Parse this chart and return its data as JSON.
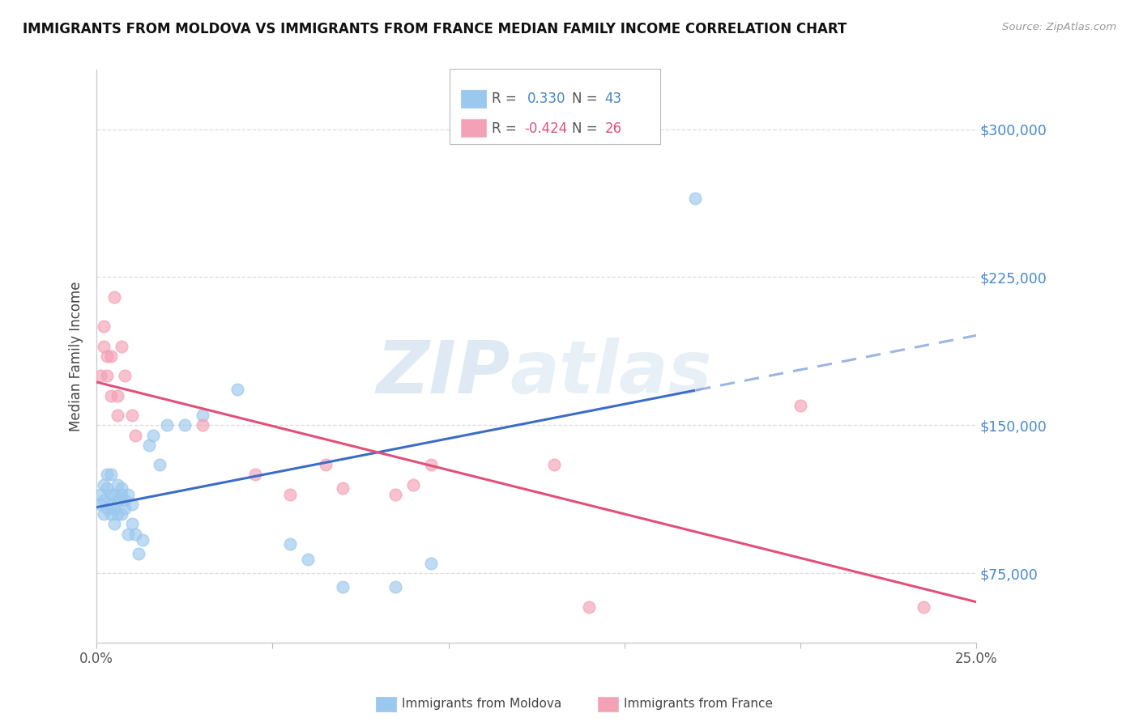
{
  "title": "IMMIGRANTS FROM MOLDOVA VS IMMIGRANTS FROM FRANCE MEDIAN FAMILY INCOME CORRELATION CHART",
  "source": "Source: ZipAtlas.com",
  "ylabel": "Median Family Income",
  "xlim": [
    0.0,
    0.25
  ],
  "ylim": [
    40000,
    330000
  ],
  "yticks": [
    75000,
    150000,
    225000,
    300000
  ],
  "ytick_labels": [
    "$75,000",
    "$150,000",
    "$225,000",
    "$300,000"
  ],
  "moldova": {
    "R": 0.33,
    "N": 43,
    "color": "#9BC8EE",
    "line_color": "#3B6CC7",
    "x": [
      0.001,
      0.001,
      0.002,
      0.002,
      0.002,
      0.003,
      0.003,
      0.003,
      0.004,
      0.004,
      0.004,
      0.004,
      0.005,
      0.005,
      0.005,
      0.006,
      0.006,
      0.006,
      0.007,
      0.007,
      0.007,
      0.008,
      0.008,
      0.009,
      0.009,
      0.01,
      0.01,
      0.011,
      0.012,
      0.013,
      0.015,
      0.016,
      0.018,
      0.02,
      0.025,
      0.03,
      0.04,
      0.055,
      0.06,
      0.07,
      0.085,
      0.095,
      0.17
    ],
    "y": [
      115000,
      110000,
      105000,
      112000,
      120000,
      118000,
      108000,
      125000,
      105000,
      115000,
      125000,
      110000,
      100000,
      115000,
      108000,
      120000,
      112000,
      105000,
      115000,
      105000,
      118000,
      108000,
      112000,
      115000,
      95000,
      110000,
      100000,
      95000,
      85000,
      92000,
      140000,
      145000,
      130000,
      150000,
      150000,
      155000,
      168000,
      90000,
      82000,
      68000,
      68000,
      80000,
      265000
    ]
  },
  "france": {
    "R": -0.424,
    "N": 26,
    "color": "#F4A0B5",
    "line_color": "#E0507A",
    "x": [
      0.001,
      0.002,
      0.002,
      0.003,
      0.003,
      0.004,
      0.004,
      0.005,
      0.006,
      0.006,
      0.007,
      0.008,
      0.01,
      0.011,
      0.03,
      0.045,
      0.055,
      0.065,
      0.07,
      0.085,
      0.09,
      0.095,
      0.13,
      0.14,
      0.2,
      0.235
    ],
    "y": [
      175000,
      200000,
      190000,
      185000,
      175000,
      185000,
      165000,
      215000,
      165000,
      155000,
      190000,
      175000,
      155000,
      145000,
      150000,
      125000,
      115000,
      130000,
      118000,
      115000,
      120000,
      130000,
      130000,
      58000,
      160000,
      58000
    ]
  },
  "background_color": "#FFFFFF",
  "grid_color": "#DDDDDD"
}
